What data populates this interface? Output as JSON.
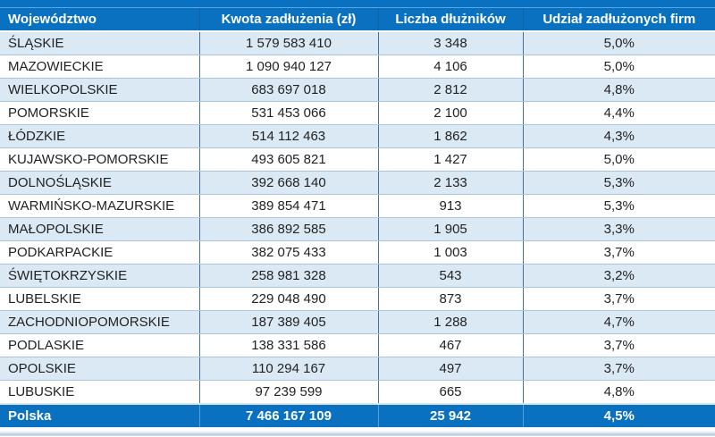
{
  "chart_data": {
    "type": "table",
    "columns": [
      "Województwo",
      "Kwota zadłużenia (zł)",
      "Liczba dłużników",
      "Udział zadłużonych firm"
    ],
    "rows": [
      [
        "ŚLĄSKIE",
        "1 579 583 410",
        "3 348",
        "5,0%"
      ],
      [
        "MAZOWIECKIE",
        "1 090 940 127",
        "4 106",
        "5,0%"
      ],
      [
        "WIELKOPOLSKIE",
        "683 697 018",
        "2 812",
        "4,8%"
      ],
      [
        "POMORSKIE",
        "531 453 066",
        "2 100",
        "4,4%"
      ],
      [
        "ŁÓDZKIE",
        "514 112 463",
        "1 862",
        "4,3%"
      ],
      [
        "KUJAWSKO-POMORSKIE",
        "493 605 821",
        "1 427",
        "5,0%"
      ],
      [
        "DOLNOŚLĄSKIE",
        "392 668 140",
        "2 133",
        "5,3%"
      ],
      [
        "WARMIŃSKO-MAZURSKIE",
        "389 854 471",
        "913",
        "5,3%"
      ],
      [
        "MAŁOPOLSKIE",
        "386 892 585",
        "1 905",
        "3,3%"
      ],
      [
        "PODKARPACKIE",
        "382 075 433",
        "1 003",
        "3,7%"
      ],
      [
        "ŚWIĘTOKRZYSKIE",
        "258 981 328",
        "543",
        "3,2%"
      ],
      [
        "LUBELSKIE",
        "229 048 490",
        "873",
        "3,7%"
      ],
      [
        "ZACHODNIOPOMORSKIE",
        "187 389 405",
        "1 288",
        "4,7%"
      ],
      [
        "PODLASKIE",
        "138 331 586",
        "467",
        "3,7%"
      ],
      [
        "OPOLSKIE",
        "110 294 167",
        "497",
        "3,7%"
      ],
      [
        "LUBUSKIE",
        "97 239 599",
        "665",
        "4,8%"
      ]
    ],
    "footer": [
      "Polska",
      "7 466 167 109",
      "25 942",
      "4,5%"
    ]
  },
  "colors": {
    "header_bg": "#0a71c0",
    "stripe_bg": "#dbe9f5",
    "grid_horizontal": "#a9c6e0",
    "grid_vertical": "#41719c",
    "header_text": "#ffffff",
    "body_text": "#222222"
  }
}
